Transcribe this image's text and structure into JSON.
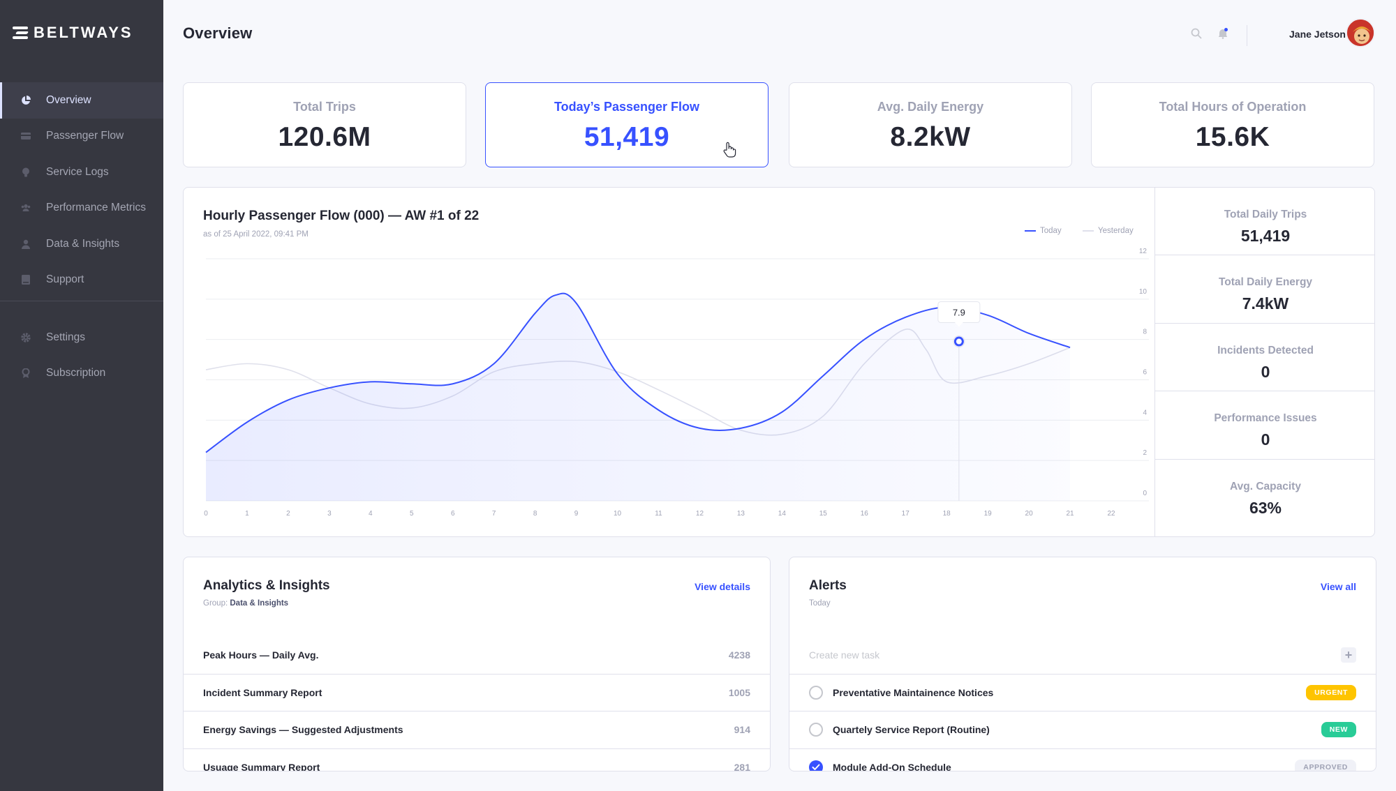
{
  "app": {
    "brand": "BELTWAYS"
  },
  "sidebar": {
    "items": [
      {
        "label": "Overview",
        "icon": "pie-chart-icon",
        "active": true
      },
      {
        "label": "Passenger Flow",
        "icon": "ticket-icon"
      },
      {
        "label": "Service Logs",
        "icon": "lightbulb-icon"
      },
      {
        "label": "Performance Metrics",
        "icon": "users-icon"
      },
      {
        "label": "Data & Insights",
        "icon": "person-icon"
      },
      {
        "label": "Support",
        "icon": "book-icon"
      }
    ],
    "secondary": [
      {
        "label": "Settings",
        "icon": "gear-icon"
      },
      {
        "label": "Subscription",
        "icon": "award-icon"
      }
    ]
  },
  "header": {
    "title": "Overview",
    "user_name": "Jane Jetson",
    "icons": [
      "search-icon",
      "bell-icon"
    ]
  },
  "kpis": [
    {
      "label": "Total Trips",
      "value": "120.6M"
    },
    {
      "label": "Today’s Passenger Flow",
      "value": "51,419",
      "active": true
    },
    {
      "label": "Avg. Daily Energy",
      "value": "8.2kW"
    },
    {
      "label": "Total Hours of Operation",
      "value": "15.6K"
    }
  ],
  "chart": {
    "title": "Hourly Passenger Flow (000) — AW #1 of 22",
    "subtitle": "as of 25 April 2022, 09:41 PM",
    "legend_today": "Today",
    "legend_yesterday": "Yesterday",
    "tooltip_value": "7.9"
  },
  "chart_data": {
    "type": "line",
    "xlabel": "",
    "ylabel": "",
    "xlim": [
      0,
      22
    ],
    "ylim": [
      0,
      12
    ],
    "x_ticks": [
      0,
      1,
      2,
      3,
      4,
      5,
      6,
      7,
      8,
      9,
      10,
      11,
      12,
      13,
      14,
      15,
      16,
      17,
      18,
      19,
      20,
      21,
      22
    ],
    "y_ticks": [
      0,
      2,
      4,
      6,
      8,
      10,
      12
    ],
    "grid": true,
    "legend_position": "top-right",
    "series": [
      {
        "name": "Today",
        "color": "#3751ff",
        "fill": true,
        "x": [
          0,
          1,
          2,
          3,
          4,
          5,
          6,
          7,
          8,
          8.5,
          9,
          10,
          11,
          12,
          13,
          14,
          15,
          16,
          17,
          18,
          19,
          20,
          21
        ],
        "y": [
          2.4,
          3.9,
          5.0,
          5.6,
          5.9,
          5.8,
          5.8,
          6.8,
          9.3,
          10.2,
          9.8,
          6.3,
          4.5,
          3.6,
          3.6,
          4.4,
          6.2,
          8.0,
          9.1,
          9.6,
          9.2,
          8.3,
          7.6
        ]
      },
      {
        "name": "Yesterday",
        "color": "#dfe0eb",
        "fill": false,
        "x": [
          0,
          1,
          2,
          3,
          4,
          5,
          6,
          7,
          8,
          9,
          10,
          11,
          12,
          13,
          14,
          15,
          16,
          17,
          17.5,
          18,
          19,
          20,
          21
        ],
        "y": [
          6.5,
          6.8,
          6.5,
          5.6,
          4.8,
          4.6,
          5.2,
          6.4,
          6.8,
          6.9,
          6.4,
          5.5,
          4.5,
          3.5,
          3.3,
          4.2,
          6.8,
          8.5,
          7.5,
          5.9,
          6.2,
          6.8,
          7.6
        ]
      }
    ],
    "highlight": {
      "x": 18.3,
      "y": 7.9,
      "label": "7.9"
    }
  },
  "stats": [
    {
      "label": "Total Daily Trips",
      "value": "51,419"
    },
    {
      "label": "Total Daily Energy",
      "value": "7.4kW"
    },
    {
      "label": "Incidents Detected",
      "value": "0"
    },
    {
      "label": "Performance Issues",
      "value": "0"
    },
    {
      "label": "Avg. Capacity",
      "value": "63%"
    }
  ],
  "analytics": {
    "title": "Analytics & Insights",
    "link": "View details",
    "group_prefix": "Group:",
    "group": "Data & Insights",
    "rows": [
      {
        "label": "Peak Hours — Daily Avg.",
        "value": "4238"
      },
      {
        "label": "Incident Summary Report",
        "value": "1005"
      },
      {
        "label": "Energy Savings — Suggested Adjustments",
        "value": "914"
      },
      {
        "label": "Usuage Summary Report",
        "value": "281"
      }
    ]
  },
  "alerts": {
    "title": "Alerts",
    "link": "View all",
    "subtitle": "Today",
    "new_task_placeholder": "Create new task",
    "items": [
      {
        "label": "Preventative Maintainence Notices",
        "badge": "URGENT",
        "badge_color": "#fec400",
        "checked": false
      },
      {
        "label": "Quartely Service Report (Routine)",
        "badge": "NEW",
        "badge_color": "#29cc97",
        "checked": false
      },
      {
        "label": "Module Add-On Schedule",
        "badge": "APPROVED",
        "badge_color": "#f0f1f7",
        "checked": true
      }
    ]
  }
}
